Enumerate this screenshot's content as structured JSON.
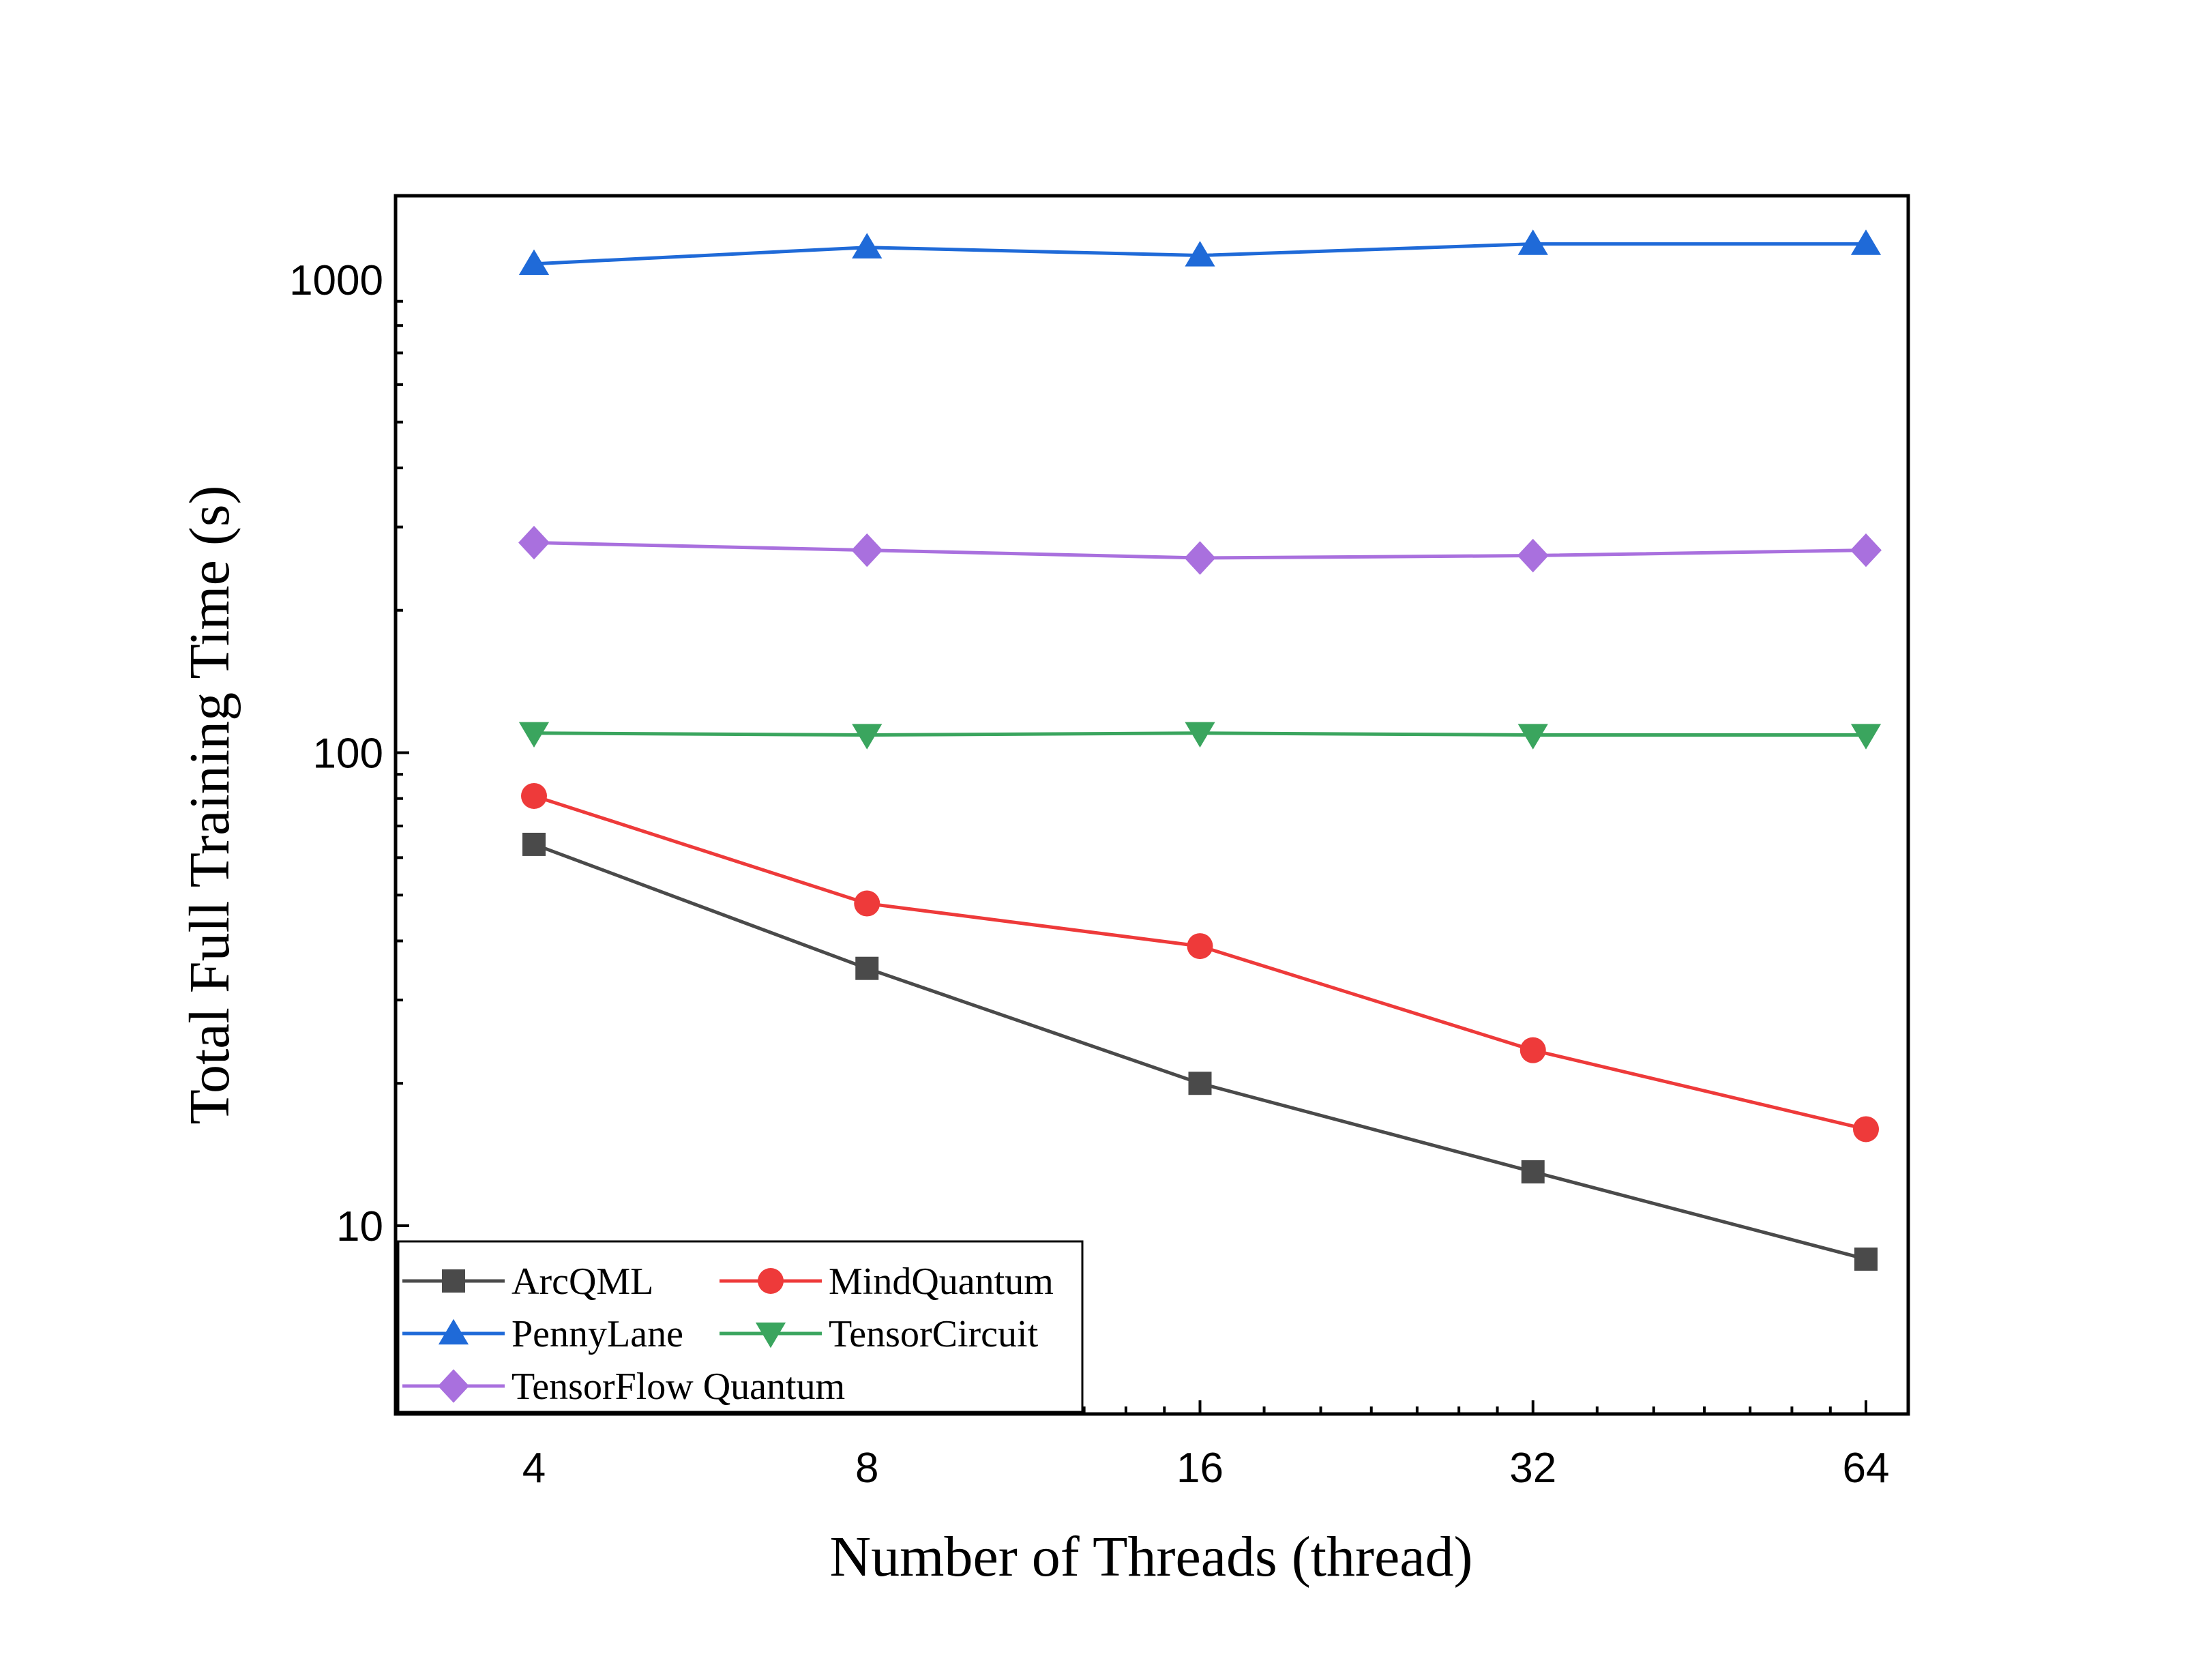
{
  "chart_data": {
    "type": "line",
    "xlabel": "Number of Threads (thread)",
    "ylabel": "Total Full Training Time (s)",
    "x": [
      4,
      8,
      16,
      32,
      64
    ],
    "x_scale": "log2",
    "x_ticks": [
      "4",
      "8",
      "16",
      "32",
      "64"
    ],
    "y_scale": "log10",
    "ylim": [
      4.5,
      1500
    ],
    "y_ticks": [
      "10",
      "100",
      "1000"
    ],
    "grid": false,
    "legend_position": "bottom-left",
    "series": [
      {
        "name": "ArcQML",
        "color": "#4a4a4a",
        "marker": "square",
        "values": [
          64,
          35,
          20,
          13,
          8.5
        ]
      },
      {
        "name": "MindQuantum",
        "color": "#ee3a3a",
        "marker": "circle",
        "values": [
          81,
          48,
          39,
          23.5,
          16
        ]
      },
      {
        "name": "PennyLane",
        "color": "#1f6ad8",
        "marker": "triangle-up",
        "values": [
          1080,
          1170,
          1125,
          1190,
          1190
        ]
      },
      {
        "name": "TensorCircuit",
        "color": "#3aa55e",
        "marker": "triangle-down",
        "values": [
          110,
          109,
          110,
          109,
          109
        ]
      },
      {
        "name": "TensorFlow Quantum",
        "color": "#a970de",
        "marker": "diamond",
        "values": [
          278,
          268,
          258,
          261,
          268
        ]
      }
    ]
  }
}
